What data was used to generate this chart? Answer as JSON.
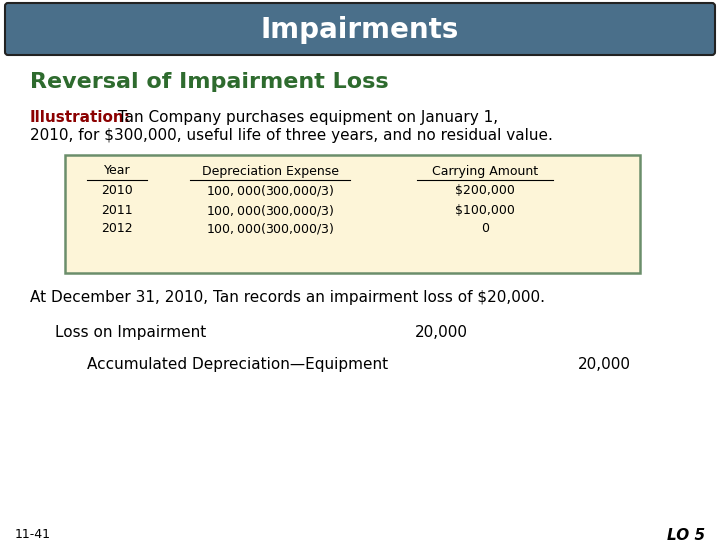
{
  "title": "Impairments",
  "title_bg_color": "#4a6f8a",
  "title_text_color": "#ffffff",
  "subtitle": "Reversal of Impairment Loss",
  "subtitle_color": "#2e6b2e",
  "illustration_label": "Illustration:",
  "illustration_label_color": "#8b0000",
  "illustration_line1_after_label": "  Tan Company purchases equipment on January 1,",
  "illustration_line2": "2010, for $300,000, useful life of three years, and no residual value.",
  "illustration_text_color": "#000000",
  "table_bg_color": "#fdf5d8",
  "table_border_color": "#6b8e6b",
  "table_headers": [
    "Year",
    "Depreciation Expense",
    "Carrying Amount"
  ],
  "table_rows": [
    [
      "2010",
      "$100,000 ($300,000/3)",
      "$200,000"
    ],
    [
      "2011",
      "$100,000 ($300,000/3)",
      "$100,000"
    ],
    [
      "2012",
      "$100,000 ($300,000/3)",
      "0"
    ]
  ],
  "para1": "At December 31, 2010, Tan records an impairment loss of $20,000.",
  "para1_color": "#000000",
  "journal_entries": [
    {
      "label": "Loss on Impairment",
      "debit": "20,000",
      "credit": "",
      "indent": 0
    },
    {
      "label": "Accumulated Depreciation—Equipment",
      "debit": "",
      "credit": "20,000",
      "indent": 1
    }
  ],
  "footer_left": "11-41",
  "footer_right": "LO 5",
  "footer_color": "#000000",
  "bg_color": "#ffffff"
}
